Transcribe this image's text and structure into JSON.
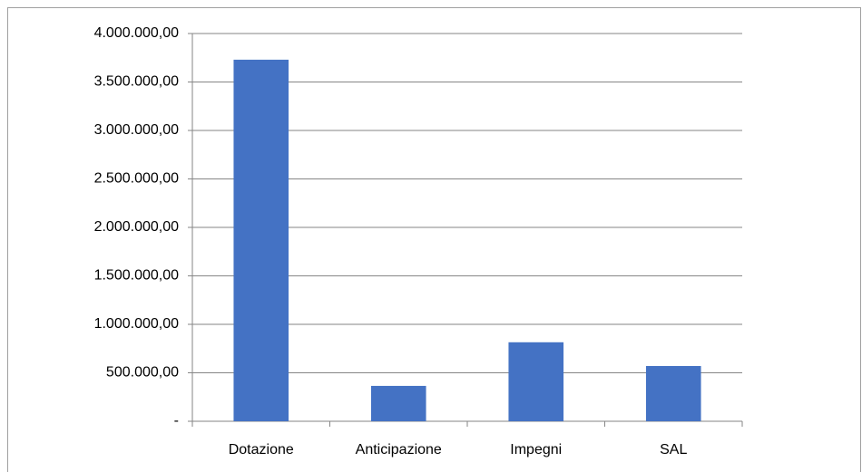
{
  "chart_data": {
    "type": "bar",
    "categories": [
      "Dotazione",
      "Anticipazione",
      "Impegni",
      "SAL"
    ],
    "values": [
      3730000,
      365000,
      815000,
      570000
    ],
    "color": "#4472c4",
    "ylim": [
      0,
      4000000
    ],
    "yticks": [
      {
        "value": 0,
        "label": "-"
      },
      {
        "value": 500000,
        "label": "500.000,00"
      },
      {
        "value": 1000000,
        "label": "1.000.000,00"
      },
      {
        "value": 1500000,
        "label": "1.500.000,00"
      },
      {
        "value": 2000000,
        "label": "2.000.000,00"
      },
      {
        "value": 2500000,
        "label": "2.500.000,00"
      },
      {
        "value": 3000000,
        "label": "3.000.000,00"
      },
      {
        "value": 3500000,
        "label": "3.500.000,00"
      },
      {
        "value": 4000000,
        "label": "4.000.000,00"
      }
    ],
    "grid": true
  }
}
